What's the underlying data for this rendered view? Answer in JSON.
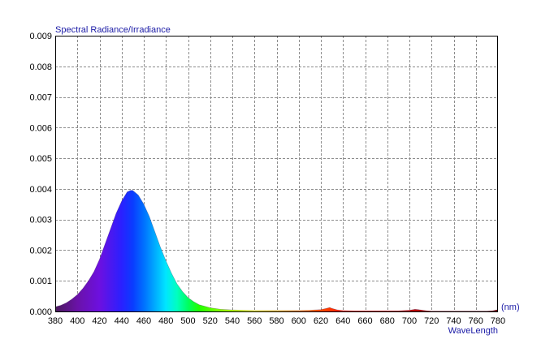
{
  "chart_data": {
    "type": "area",
    "title": "Spectral Radiance/Irradiance",
    "xlabel": "WaveLength",
    "x_unit": "(nm)",
    "ylabel": "",
    "xlim": [
      380,
      780
    ],
    "ylim": [
      0,
      0.009
    ],
    "grid": true,
    "x_ticks": [
      "380",
      "400",
      "420",
      "440",
      "460",
      "480",
      "500",
      "520",
      "540",
      "560",
      "580",
      "600",
      "620",
      "640",
      "660",
      "680",
      "700",
      "720",
      "740",
      "760",
      "780"
    ],
    "y_ticks": [
      "0.000",
      "0.001",
      "0.002",
      "0.003",
      "0.004",
      "0.005",
      "0.006",
      "0.007",
      "0.008",
      "0.009"
    ],
    "fill": "visible spectrum colors under curve",
    "series": [
      {
        "x": [
          380,
          385,
          390,
          395,
          400,
          405,
          410,
          415,
          420,
          425,
          430,
          435,
          440,
          445,
          448,
          450,
          455,
          460,
          465,
          470,
          475,
          480,
          485,
          490,
          495,
          500,
          505,
          510,
          520,
          530,
          540,
          550,
          560,
          570,
          580,
          590,
          600,
          610,
          615,
          620,
          625,
          628,
          630,
          635,
          640,
          650,
          660,
          670,
          680,
          690,
          695,
          700,
          705,
          708,
          712,
          716,
          720,
          730,
          740,
          750,
          760,
          770,
          775,
          780
        ],
        "y": [
          0.00015,
          0.0002,
          0.00028,
          0.0004,
          0.00055,
          0.00075,
          0.001,
          0.0013,
          0.0017,
          0.0022,
          0.0027,
          0.0032,
          0.0036,
          0.0039,
          0.00395,
          0.00395,
          0.0038,
          0.0035,
          0.0031,
          0.0026,
          0.0021,
          0.00165,
          0.00125,
          0.0009,
          0.00065,
          0.00045,
          0.00032,
          0.00022,
          0.00012,
          7e-05,
          5e-05,
          4e-05,
          3e-05,
          3e-05,
          3e-05,
          3e-05,
          3e-05,
          4e-05,
          5e-05,
          6e-05,
          0.0001,
          0.00013,
          0.0001,
          5e-05,
          3e-05,
          2e-05,
          2e-05,
          2e-05,
          2e-05,
          2e-05,
          3e-05,
          4e-05,
          7e-05,
          6e-05,
          4e-05,
          2e-05,
          1e-05,
          1e-05,
          1e-05,
          1e-05,
          1e-05,
          1e-05,
          2e-05,
          6e-05
        ]
      }
    ]
  }
}
